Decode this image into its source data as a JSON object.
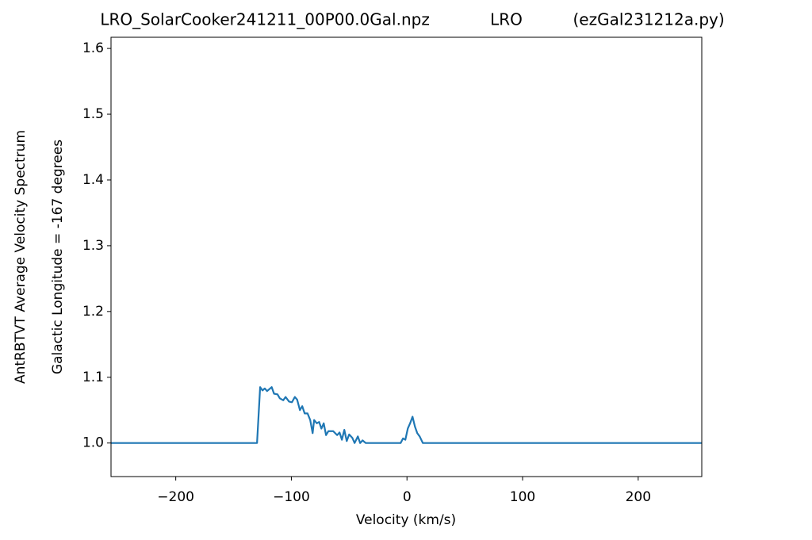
{
  "chart_data": {
    "type": "line",
    "title": "LRO_SolarCooker241211_00P00.0Gal.npz            LRO          (ezGal231212a.py)",
    "xlabel": "Velocity (km/s)",
    "ylabel": [
      "AntRBTVT Average Velocity Spectrum",
      "Galactic Longitude = -167 degrees"
    ],
    "color": "#1f77b4",
    "x": [
      -256,
      -129.7,
      -127,
      -125,
      -123,
      -121,
      -117,
      -115,
      -112,
      -110,
      -107,
      -105,
      -102,
      -99.5,
      -97,
      -95,
      -92.6,
      -90.6,
      -88.5,
      -86,
      -83.7,
      -81.6,
      -80.3,
      -78,
      -76,
      -74,
      -72,
      -70,
      -68,
      -63.8,
      -60.4,
      -58.3,
      -56.3,
      -54.2,
      -52.1,
      -50,
      -47.3,
      -45.3,
      -42.5,
      -40.5,
      -38.4,
      -35.7,
      -5.5,
      -3.4,
      -1.4,
      0.7,
      2.7,
      4.8,
      6.9,
      8.9,
      11,
      13.7,
      255
    ],
    "values": [
      1.0,
      1.0,
      1.085,
      1.08,
      1.083,
      1.079,
      1.085,
      1.075,
      1.074,
      1.068,
      1.065,
      1.07,
      1.063,
      1.062,
      1.07,
      1.066,
      1.05,
      1.056,
      1.045,
      1.045,
      1.035,
      1.015,
      1.035,
      1.03,
      1.032,
      1.022,
      1.03,
      1.012,
      1.018,
      1.018,
      1.012,
      1.016,
      1.005,
      1.02,
      1.003,
      1.013,
      1.008,
      1.0,
      1.01,
      1.0,
      1.004,
      1.0,
      1.0,
      1.007,
      1.005,
      1.022,
      1.03,
      1.04,
      1.025,
      1.015,
      1.01,
      1.0,
      1.0
    ],
    "xlim": [
      -256,
      255
    ],
    "ylim": [
      0.949,
      1.617
    ],
    "xticks": [
      {
        "value": -200,
        "label": "−200"
      },
      {
        "value": -100,
        "label": "−100"
      },
      0,
      100,
      200
    ],
    "yticks": [
      {
        "value": 1,
        "label": "1.0"
      },
      1.1,
      1.2,
      1.3,
      1.4,
      1.5,
      1.6
    ]
  }
}
